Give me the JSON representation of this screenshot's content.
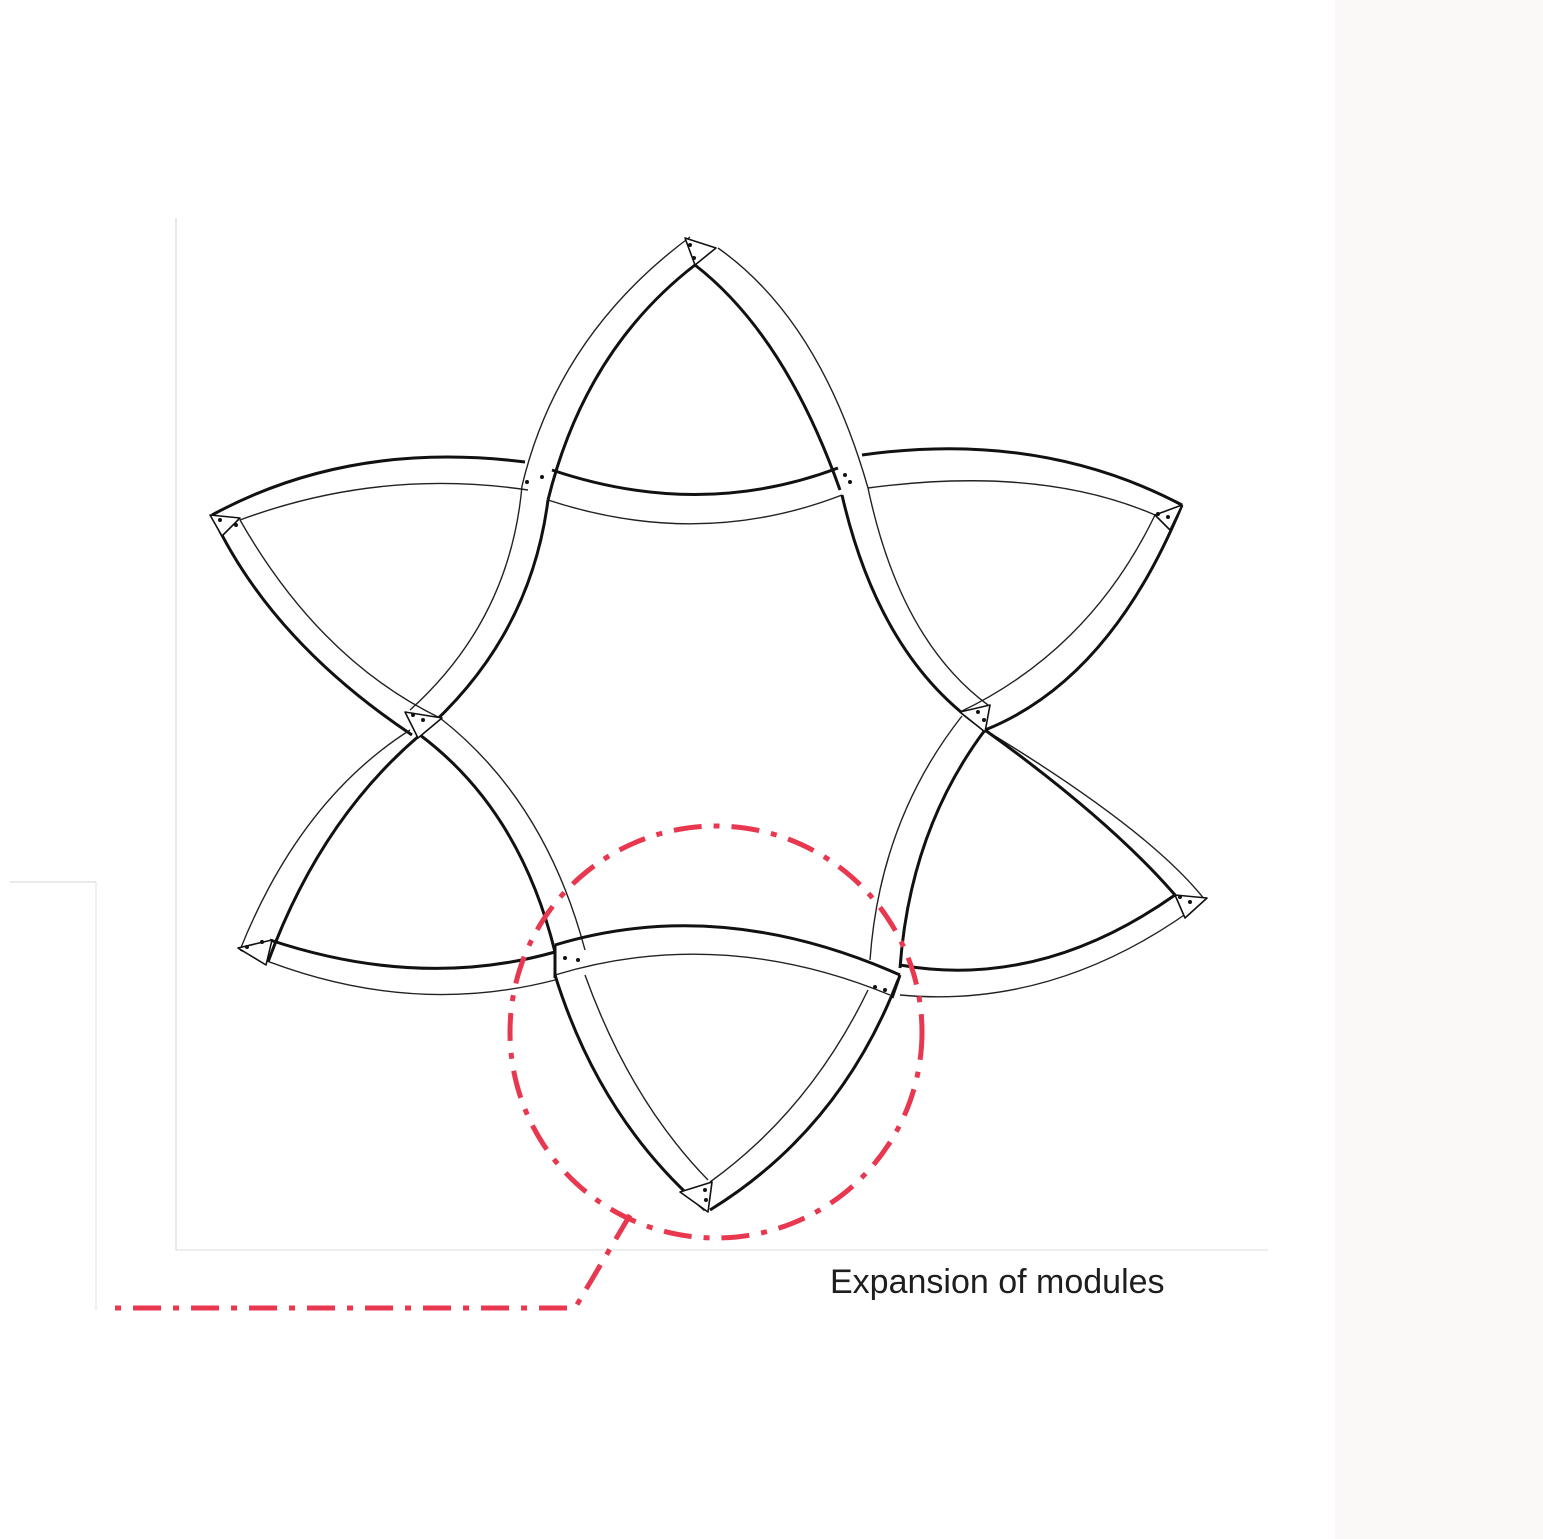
{
  "caption": "Expansion of modules",
  "colors": {
    "background": "#ffffff",
    "side_strip": "#faf9f7",
    "outline": "#111111",
    "thin_outline": "#222222",
    "highlight": "#e8384f",
    "frame": "#d8d8d8"
  },
  "diagram": {
    "modules": 6,
    "shape": "six-pointed star of curved strip modules",
    "highlight_marker": "dash-dot circle with leader line"
  }
}
